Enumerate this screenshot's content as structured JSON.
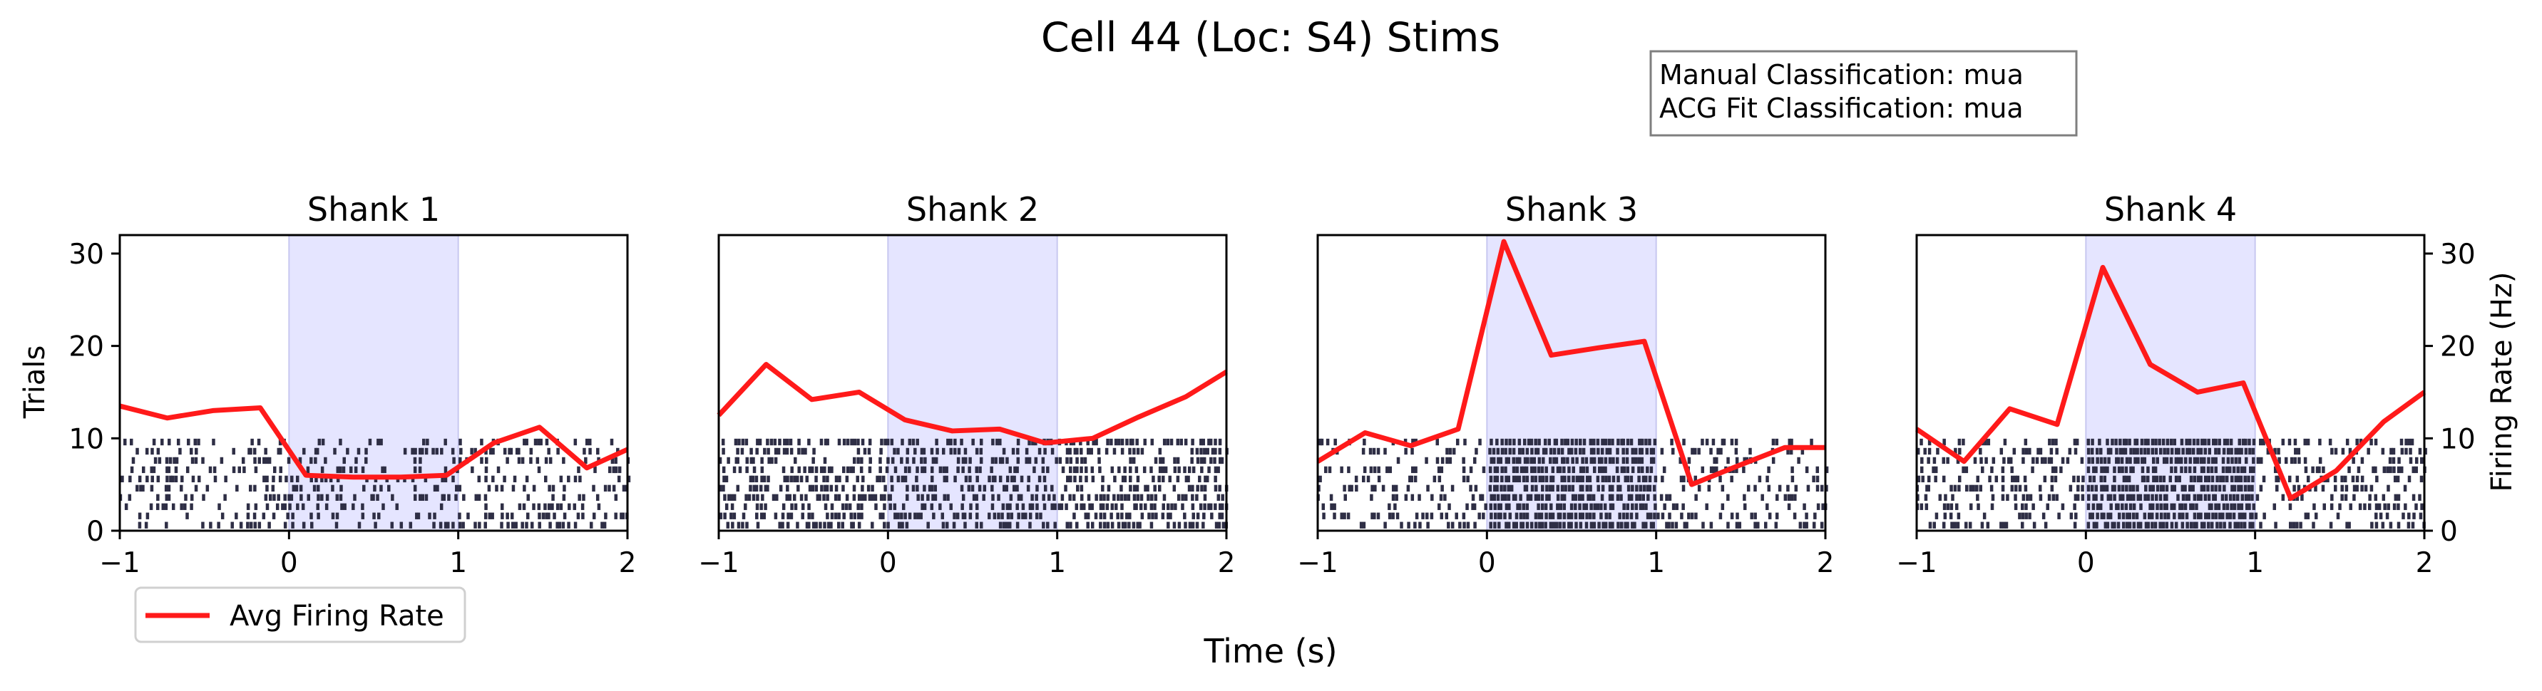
{
  "title": "Cell 44 (Loc: S4) Stims",
  "info_box": {
    "manual": "Manual Classification: mua",
    "acg": "ACG Fit Classification: mua"
  },
  "axes_labels": {
    "x": "Time (s)",
    "y_left": "Trials",
    "y_right": "Firing Rate (Hz)"
  },
  "legend": {
    "label": "Avg Firing Rate",
    "color": "#ff1a1a"
  },
  "colors": {
    "raster": "#2e2e45",
    "stim_shade": "#e5e5ff",
    "stim_edge": "#c8c8f0",
    "rate_line": "#ff1a1a"
  },
  "chart_data": {
    "type": "line",
    "xlim": [
      -1,
      2
    ],
    "ylim_trials": [
      0,
      32
    ],
    "ylim_rate": [
      0,
      32
    ],
    "x_ticks": [
      -1,
      0,
      1,
      2
    ],
    "y_ticks": [
      0,
      10,
      20,
      30
    ],
    "stim_window": [
      0,
      1
    ],
    "n_trials": 10,
    "rate_x": [
      -1,
      -0.72,
      -0.45,
      -0.17,
      0.1,
      0.38,
      0.66,
      0.93,
      1.21,
      1.48,
      1.76,
      2
    ],
    "panels": [
      {
        "title": "Shank 1",
        "raster_density": {
          "pre": 0.35,
          "stim": 0.3,
          "post": 0.35
        },
        "rate": [
          13.5,
          12.2,
          13.0,
          13.3,
          6.0,
          5.8,
          5.8,
          6.0,
          9.5,
          11.2,
          6.8,
          8.8
        ]
      },
      {
        "title": "Shank 2",
        "raster_density": {
          "pre": 0.55,
          "stim": 0.5,
          "post": 0.55
        },
        "rate": [
          12.5,
          18.0,
          14.2,
          15.0,
          12.0,
          10.8,
          11.0,
          9.5,
          10.0,
          12.3,
          14.5,
          17.2
        ]
      },
      {
        "title": "Shank 3",
        "raster_density": {
          "pre": 0.3,
          "stim": 0.85,
          "post": 0.3
        },
        "rate": [
          7.5,
          10.6,
          9.2,
          11.0,
          31.3,
          19.0,
          19.8,
          20.5,
          5.0,
          7.0,
          9.0,
          9.0
        ]
      },
      {
        "title": "Shank 4",
        "raster_density": {
          "pre": 0.4,
          "stim": 0.85,
          "post": 0.4
        },
        "rate": [
          11.0,
          7.5,
          13.2,
          11.5,
          28.5,
          18.0,
          15.0,
          16.0,
          3.5,
          6.5,
          11.8,
          15.0
        ]
      }
    ]
  }
}
